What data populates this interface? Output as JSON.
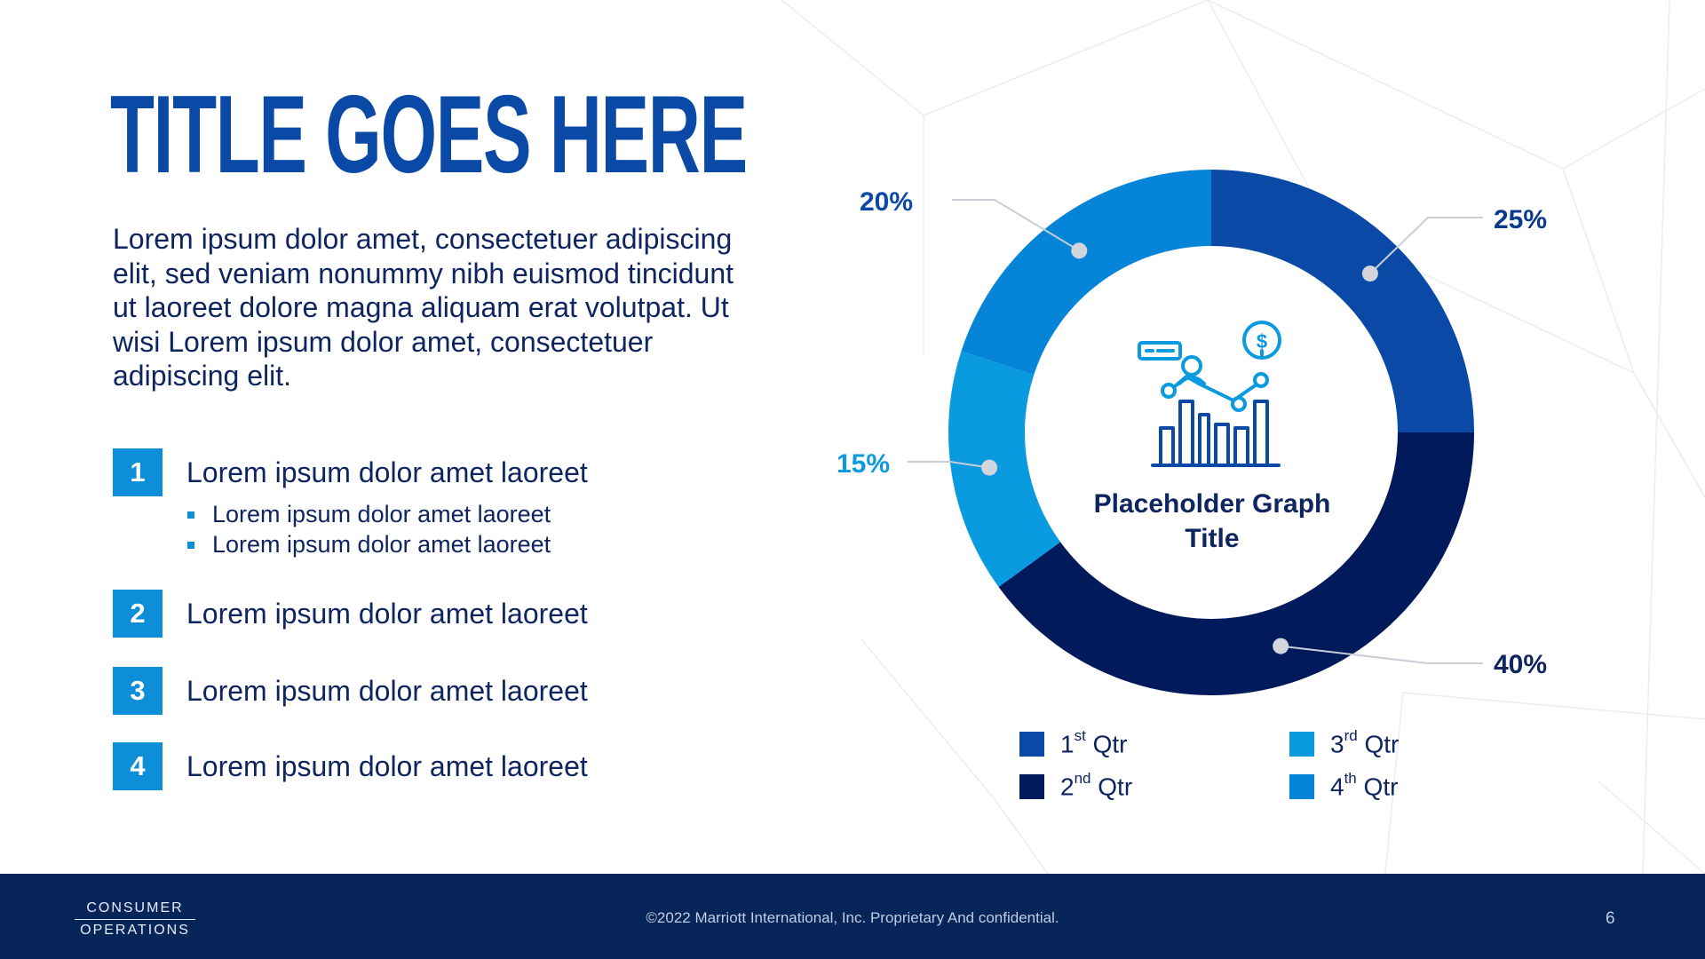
{
  "slide": {
    "title": "TITLE GOES HERE",
    "intro": "Lorem ipsum dolor amet, consectetuer adipiscing elit, sed veniam nonummy nibh euismod tincidunt ut laoreet dolore magna aliquam erat volutpat. Ut wisi Lorem ipsum dolor amet, consectetuer adipiscing elit.",
    "items": [
      {
        "num": "1",
        "label": "Lorem ipsum dolor amet laoreet",
        "subs": [
          "Lorem ipsum dolor amet laoreet",
          "Lorem ipsum dolor amet laoreet"
        ]
      },
      {
        "num": "2",
        "label": "Lorem ipsum dolor amet laoreet",
        "subs": []
      },
      {
        "num": "3",
        "label": "Lorem ipsum dolor amet laoreet",
        "subs": []
      },
      {
        "num": "4",
        "label": "Lorem ipsum dolor amet laoreet",
        "subs": []
      }
    ]
  },
  "chart_data": {
    "type": "pie",
    "variant": "donut",
    "title": "Placeholder Graph Title",
    "center_icon": "chart-analytics-icon",
    "series": [
      {
        "name": "1st Qtr",
        "base": "1",
        "suffix": "st",
        "tail": " Qtr",
        "value": 25,
        "label": "25%",
        "color": "#0a4aa6",
        "label_color": "#0a3a8c"
      },
      {
        "name": "2nd Qtr",
        "base": "2",
        "suffix": "nd",
        "tail": " Qtr",
        "value": 40,
        "label": "40%",
        "color": "#011a5c",
        "label_color": "#0f2560"
      },
      {
        "name": "3rd Qtr",
        "base": "3",
        "suffix": "rd",
        "tail": " Qtr",
        "value": 15,
        "label": "15%",
        "color": "#0a9ae0",
        "label_color": "#0a9ae0"
      },
      {
        "name": "4th Qtr",
        "base": "4",
        "suffix": "th",
        "tail": " Qtr",
        "value": 20,
        "label": "20%",
        "color": "#0584d8",
        "label_color": "#0a4aa6"
      }
    ],
    "legend_position": "bottom"
  },
  "footer": {
    "logo_top": "CONSUMER",
    "logo_bottom": "OPERATIONS",
    "copyright": "©2022 Marriott International, Inc. Proprietary And confidential.",
    "page": "6"
  }
}
